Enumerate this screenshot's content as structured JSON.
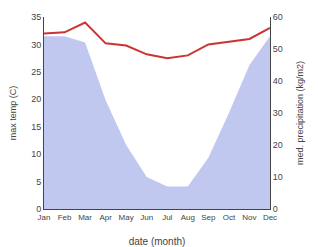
{
  "chart_data": {
    "type": "line",
    "xlabel": "date (month)",
    "ylabel": "max temp (C)",
    "y2label": "med. precipitation (kg/m2)",
    "categories": [
      "Jan",
      "Feb",
      "Mar",
      "Apr",
      "May",
      "Jun",
      "Jul",
      "Aug",
      "Sep",
      "Oct",
      "Nov",
      "Dec"
    ],
    "series": [
      {
        "type": "area",
        "axis": "y2",
        "color": "#c0c8f0",
        "values": [
          54,
          54,
          52,
          34,
          20,
          10,
          7,
          7,
          16,
          30,
          45,
          54
        ]
      },
      {
        "type": "line",
        "color": "#cc3333",
        "values": [
          32.0,
          32.2,
          34.0,
          30.2,
          29.8,
          28.2,
          27.5,
          28.0,
          30.0,
          30.5,
          31.0,
          33.0
        ]
      }
    ],
    "ylim": [
      0,
      35
    ],
    "yticks": [
      0,
      5,
      10,
      15,
      20,
      25,
      30,
      35
    ],
    "y2lim": [
      0,
      60
    ],
    "y2ticks": [
      0,
      10,
      20,
      30,
      40,
      50,
      60
    ],
    "grid": false
  }
}
